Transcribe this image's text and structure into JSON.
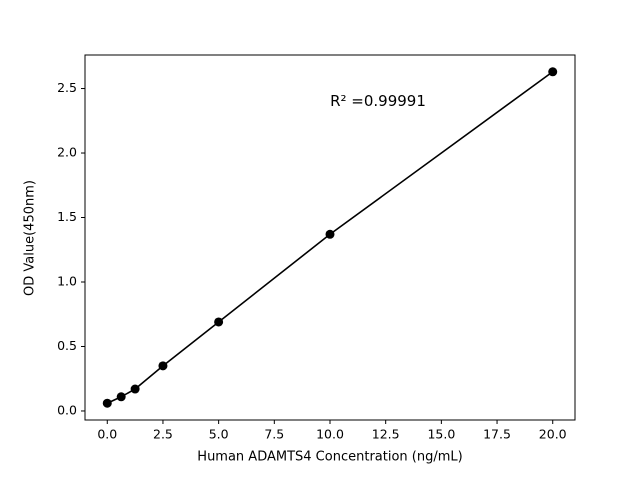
{
  "chart_data": {
    "type": "scatter",
    "title": "",
    "xlabel": "Human ADAMTS4 Concentration (ng/mL)",
    "ylabel": "OD Value(450nm)",
    "annotation": "R² =0.99991",
    "x": [
      0,
      0.625,
      1.25,
      2.5,
      5,
      10,
      20
    ],
    "y": [
      0.06,
      0.11,
      0.17,
      0.35,
      0.69,
      1.37,
      2.63
    ],
    "xlim": [
      -1,
      21
    ],
    "ylim": [
      -0.07,
      2.76
    ],
    "xticks": {
      "values": [
        0,
        2.5,
        5,
        7.5,
        10,
        12.5,
        15,
        17.5,
        20
      ],
      "labels": [
        "0.0",
        "2.5",
        "5.0",
        "7.5",
        "10.0",
        "12.5",
        "15.0",
        "17.5",
        "20.0"
      ]
    },
    "yticks": {
      "values": [
        0,
        0.5,
        1,
        1.5,
        2,
        2.5
      ],
      "labels": [
        "0.0",
        "0.5",
        "1.0",
        "1.5",
        "2.0",
        "2.5"
      ]
    },
    "grid": false,
    "legend_position": "none",
    "line_color": "#000000",
    "marker_color": "#000000",
    "marker_size": 4.5
  }
}
